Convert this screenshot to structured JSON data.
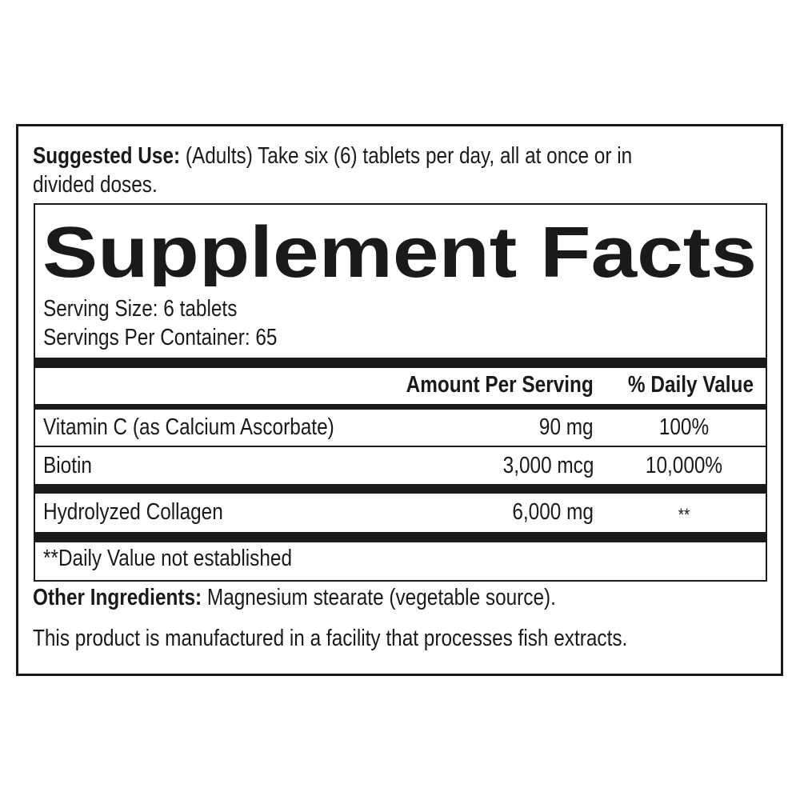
{
  "suggested_use": {
    "label": "Suggested Use:",
    "text": " (Adults) Take six (6) tablets per day, all at once or in",
    "text2": "divided doses."
  },
  "facts": {
    "title": "Supplement Facts",
    "serving_size": "Serving Size: 6 tablets",
    "servings_per_container": "Servings Per Container: 65",
    "headers": {
      "amount": "Amount Per Serving",
      "dv": "% Daily Value"
    },
    "rows": [
      {
        "name": "Vitamin C (as Calcium Ascorbate)",
        "amount": "90 mg",
        "dv": "100%"
      },
      {
        "name": "Biotin",
        "amount": "3,000 mcg",
        "dv": "10,000%"
      },
      {
        "name": "Hydrolyzed Collagen",
        "amount": "6,000 mg",
        "dv": "**"
      }
    ],
    "footnote": "**Daily Value not established"
  },
  "other_ingredients": {
    "label": "Other Ingredients:",
    "text": " Magnesium stearate (vegetable source)."
  },
  "allergen": "This product is manufactured in a facility that processes fish extracts."
}
